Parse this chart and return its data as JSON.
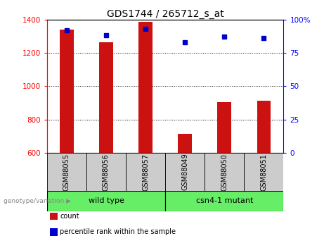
{
  "title": "GDS1744 / 265712_s_at",
  "categories": [
    "GSM88055",
    "GSM88056",
    "GSM88057",
    "GSM88049",
    "GSM88050",
    "GSM88051"
  ],
  "bar_values": [
    1340,
    1265,
    1385,
    715,
    905,
    915
  ],
  "percentile_values": [
    92,
    88,
    93,
    83,
    87,
    86
  ],
  "ylim_left": [
    600,
    1400
  ],
  "ylim_right": [
    0,
    100
  ],
  "yticks_left": [
    600,
    800,
    1000,
    1200,
    1400
  ],
  "yticks_right": [
    0,
    25,
    50,
    75,
    100
  ],
  "bar_color": "#cc1111",
  "dot_color": "#0000cc",
  "group_label_wt": "wild type",
  "group_label_mut": "csn4-1 mutant",
  "genotype_label": "genotype/variation",
  "legend_count": "count",
  "legend_percentile": "percentile rank within the sample",
  "background_color": "#ffffff",
  "label_box_color": "#cccccc",
  "group_green": "#66ee66",
  "title_fontsize": 10,
  "tick_fontsize": 7.5,
  "label_fontsize": 7,
  "group_fontsize": 8,
  "bar_width": 0.35
}
